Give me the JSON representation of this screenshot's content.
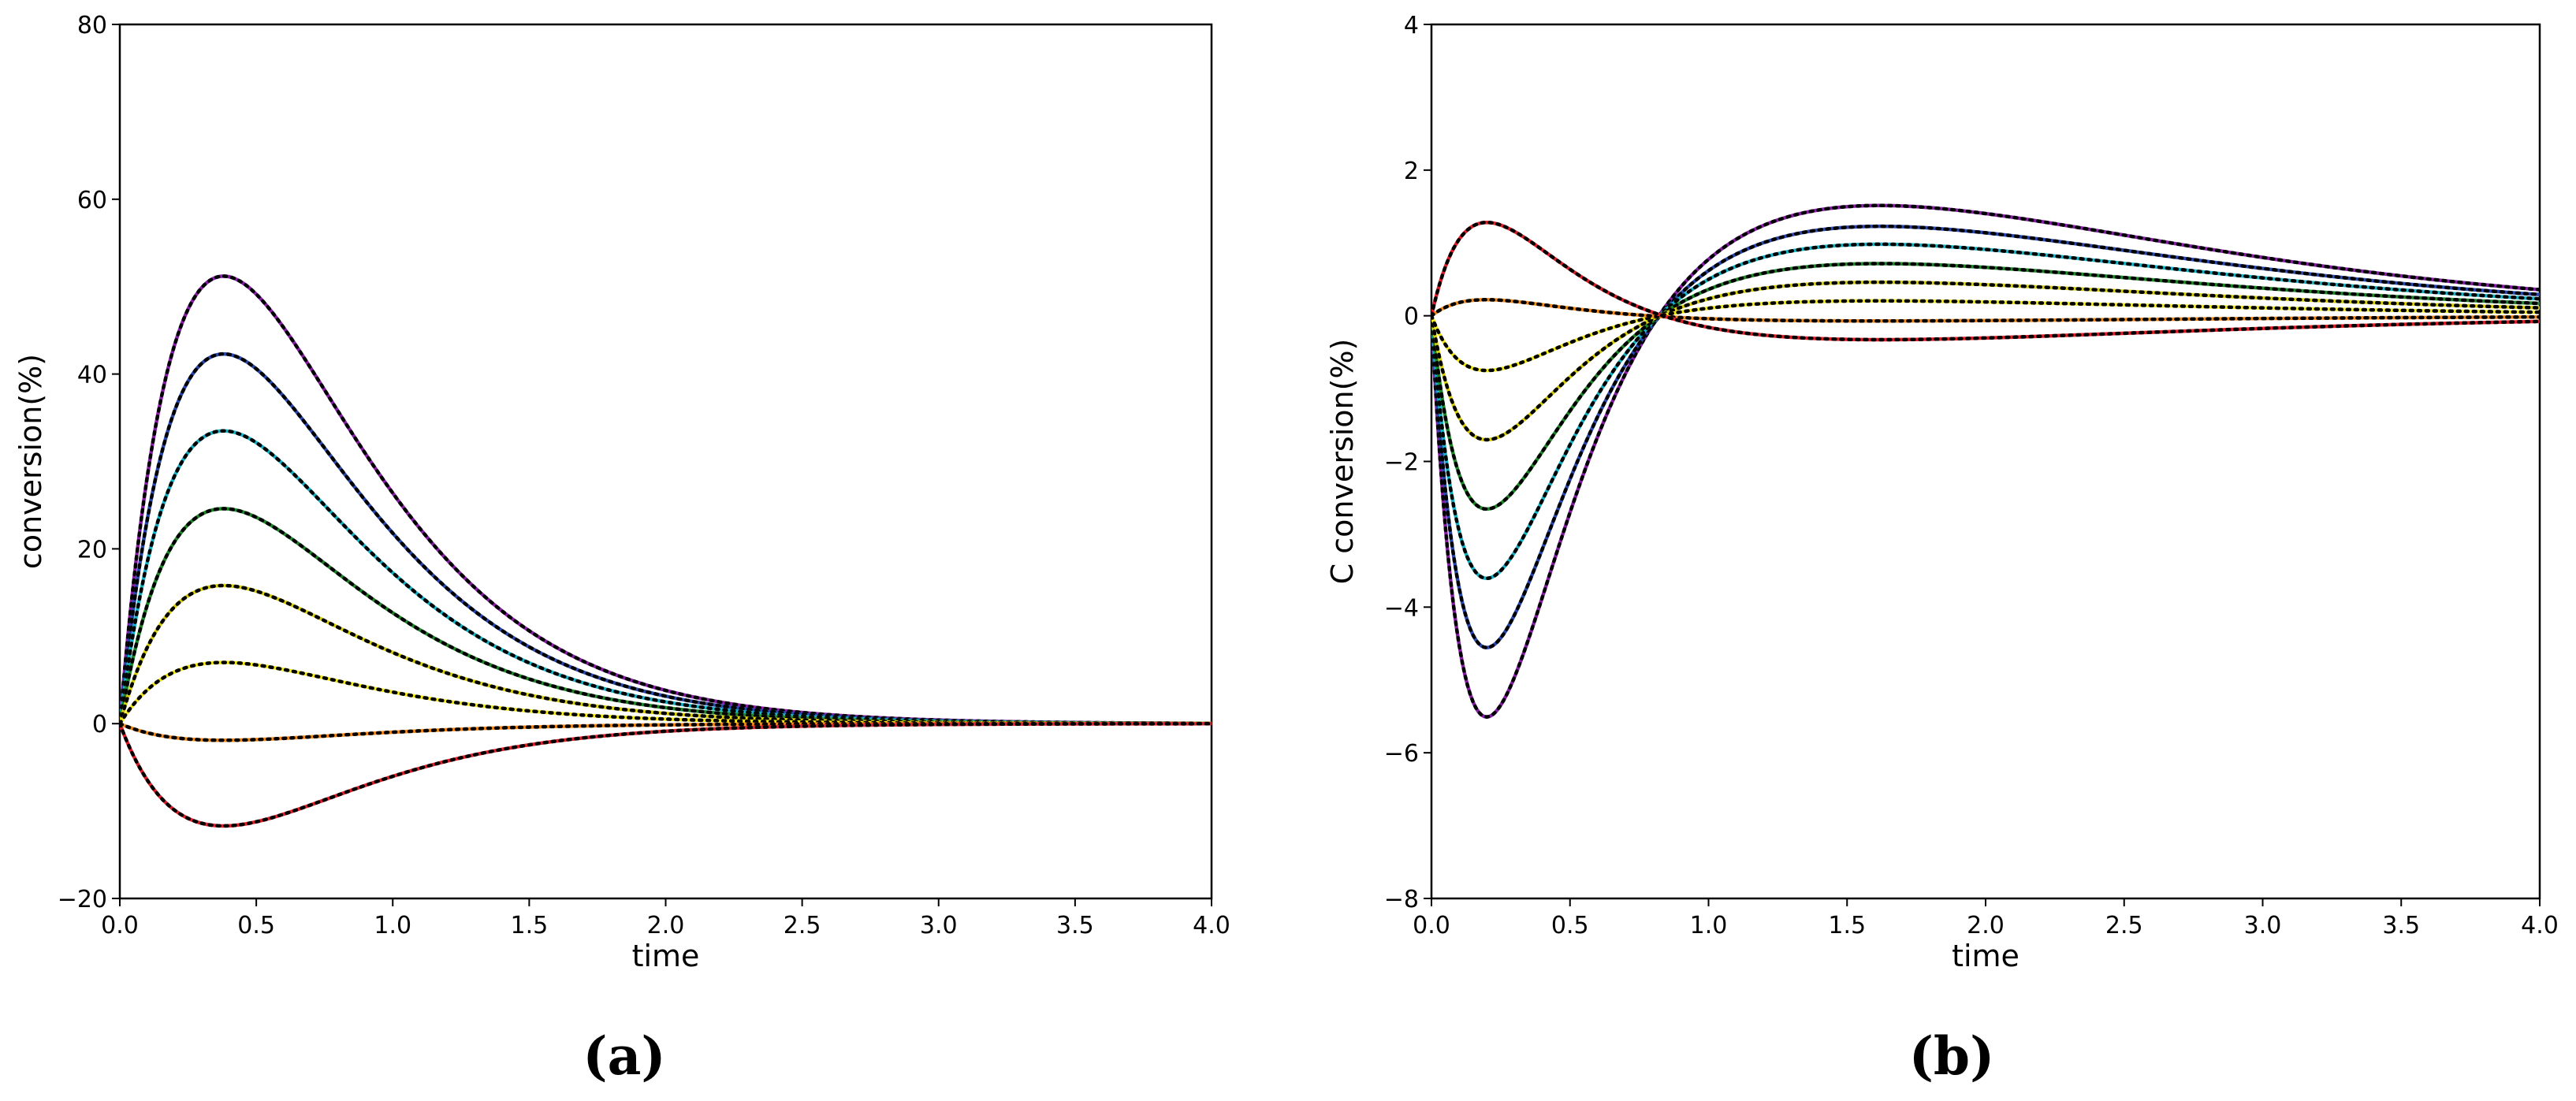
{
  "chart_data": [
    {
      "type": "line",
      "panel_caption": "(a)",
      "xlabel": "time",
      "ylabel": "conversion(%)",
      "xlim": [
        0,
        4
      ],
      "ylim": [
        -20,
        80
      ],
      "xticks": [
        "0.0",
        "0.5",
        "1.0",
        "1.5",
        "2.0",
        "2.5",
        "3.0",
        "3.5",
        "4.0"
      ],
      "yticks": [
        "−20",
        "0",
        "20",
        "40",
        "60",
        "80"
      ],
      "grid": false,
      "legend": "none",
      "series": [
        {
          "color": "#8b1fa9",
          "peak_x": 0.38,
          "peak_y": 51.2
        },
        {
          "color": "#2a4ab0",
          "peak_x": 0.38,
          "peak_y": 42.3
        },
        {
          "color": "#18b4c8",
          "peak_x": 0.38,
          "peak_y": 33.5
        },
        {
          "color": "#1f8a2a",
          "peak_x": 0.38,
          "peak_y": 24.6
        },
        {
          "color": "#d8cf10",
          "peak_x": 0.38,
          "peak_y": 15.8
        },
        {
          "color": "#f2e81c",
          "peak_x": 0.38,
          "peak_y": 7.0
        },
        {
          "color": "#f08a1c",
          "peak_x": 0.38,
          "peak_y": -1.9
        },
        {
          "color": "#e0202a",
          "peak_x": 0.38,
          "peak_y": -11.7
        }
      ]
    },
    {
      "type": "line",
      "panel_caption": "(b)",
      "xlabel": "time",
      "ylabel": "C conversion(%)",
      "xlim": [
        0,
        4
      ],
      "ylim": [
        -8,
        4
      ],
      "xticks": [
        "0.0",
        "0.5",
        "1.0",
        "1.5",
        "2.0",
        "2.5",
        "3.0",
        "3.5",
        "4.0"
      ],
      "yticks": [
        "−8",
        "−6",
        "−4",
        "−2",
        "0",
        "2",
        "4"
      ],
      "grid": false,
      "legend": "none",
      "series": [
        {
          "color": "#8b1fa9",
          "min_x": 0.21,
          "min_y": -5.5,
          "max_x": 1.45,
          "max_y": 1.48
        },
        {
          "color": "#2a4ab0",
          "min_x": 0.21,
          "min_y": -4.55,
          "max_x": 1.45,
          "max_y": 1.2
        },
        {
          "color": "#18b4c8",
          "min_x": 0.21,
          "min_y": -3.6,
          "max_x": 1.45,
          "max_y": 0.96
        },
        {
          "color": "#1f8a2a",
          "min_x": 0.21,
          "min_y": -2.65,
          "max_x": 1.45,
          "max_y": 0.7
        },
        {
          "color": "#d8cf10",
          "min_x": 0.21,
          "min_y": -1.7,
          "max_x": 1.45,
          "max_y": 0.45
        },
        {
          "color": "#f2e81c",
          "min_x": 0.21,
          "min_y": -0.75,
          "max_x": 1.45,
          "max_y": 0.2
        },
        {
          "color": "#f08a1c",
          "min_x": 1.45,
          "min_y": -0.07,
          "max_x": 0.21,
          "max_y": 0.22
        },
        {
          "color": "#e0202a",
          "min_x": 1.45,
          "min_y": -0.32,
          "max_x": 0.21,
          "max_y": 1.28
        }
      ]
    }
  ]
}
